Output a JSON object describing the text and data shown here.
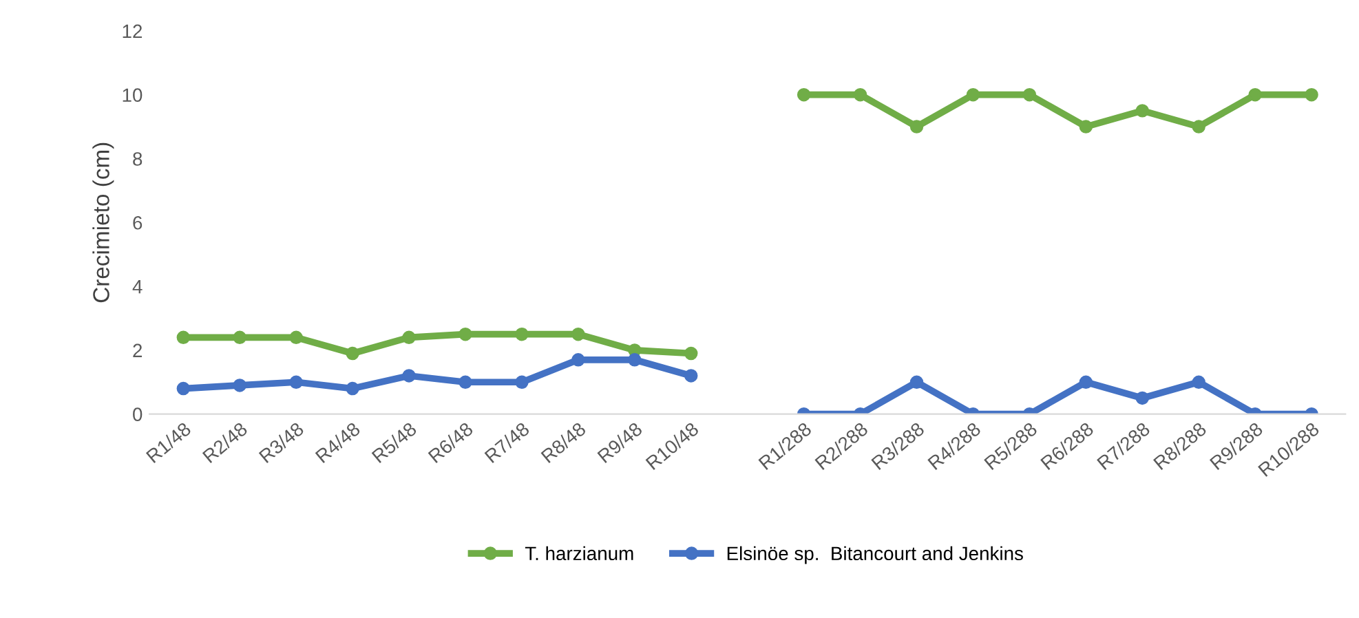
{
  "chart_data": {
    "type": "line",
    "ylabel": "Crecimieto (cm)",
    "categories": [
      "R1/48",
      "R2/48",
      "R3/48",
      "R4/48",
      "R5/48",
      "R6/48",
      "R7/48",
      "R8/48",
      "R9/48",
      "R10/48",
      null,
      "R1/288",
      "R2/288",
      "R3/288",
      "R4/288",
      "R5/288",
      "R6/288",
      "R7/288",
      "R8/288",
      "R9/288",
      "R10/288"
    ],
    "series": [
      {
        "name": "T. harzianum",
        "color": "#70ad47",
        "values": [
          2.4,
          2.4,
          2.4,
          1.9,
          2.4,
          2.5,
          2.5,
          2.5,
          2.0,
          1.9,
          null,
          10,
          10,
          9,
          10,
          10,
          9,
          9.5,
          9,
          10,
          10
        ]
      },
      {
        "name": "Elsinöe sp.  Bitancourt and Jenkins",
        "color": "#4472c4",
        "values": [
          0.8,
          0.9,
          1.0,
          0.8,
          1.2,
          1.0,
          1.0,
          1.7,
          1.7,
          1.2,
          null,
          0,
          0,
          1,
          0,
          0,
          1,
          0.5,
          1,
          0,
          0
        ]
      }
    ],
    "ylim": [
      0,
      12
    ],
    "yticks": [
      0,
      2,
      4,
      6,
      8,
      10,
      12
    ],
    "grid": false,
    "legend": "bottom",
    "marker": "circle",
    "line_style": "solid"
  }
}
